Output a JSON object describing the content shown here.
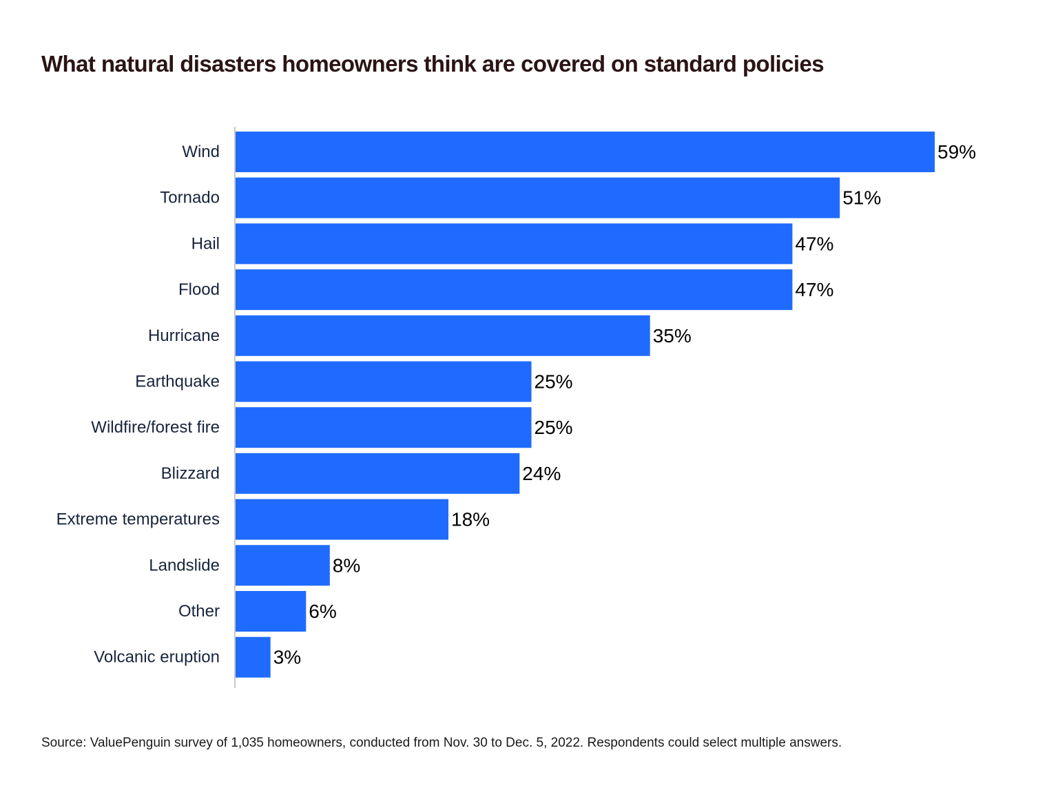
{
  "title": "What natural disasters homeowners think are covered on standard policies",
  "source": "Source: ValuePenguin survey of 1,035 homeowners, conducted from Nov. 30 to Dec. 5, 2022. Respondents could select multiple answers.",
  "colors": {
    "bar": "#1f6bff",
    "title": "#2b1414",
    "category_label": "#16243b",
    "value_label": "#000000",
    "axis": "#c8c8c8"
  },
  "chart_data": {
    "type": "bar",
    "orientation": "horizontal",
    "title": "What natural disasters homeowners think are covered on standard policies",
    "xlabel": "",
    "ylabel": "",
    "categories": [
      "Wind",
      "Tornado",
      "Hail",
      "Flood",
      "Hurricane",
      "Earthquake",
      "Wildfire/forest fire",
      "Blizzard",
      "Extreme temperatures",
      "Landslide",
      "Other",
      "Volcanic eruption"
    ],
    "values": [
      59,
      51,
      47,
      47,
      35,
      25,
      25,
      24,
      18,
      8,
      6,
      3
    ],
    "value_labels": [
      "59%",
      "51%",
      "47%",
      "47%",
      "35%",
      "25%",
      "25%",
      "24%",
      "18%",
      "8%",
      "6%",
      "3%"
    ],
    "unit": "%",
    "xlim": [
      0,
      59
    ],
    "grid": false,
    "legend": "none"
  }
}
